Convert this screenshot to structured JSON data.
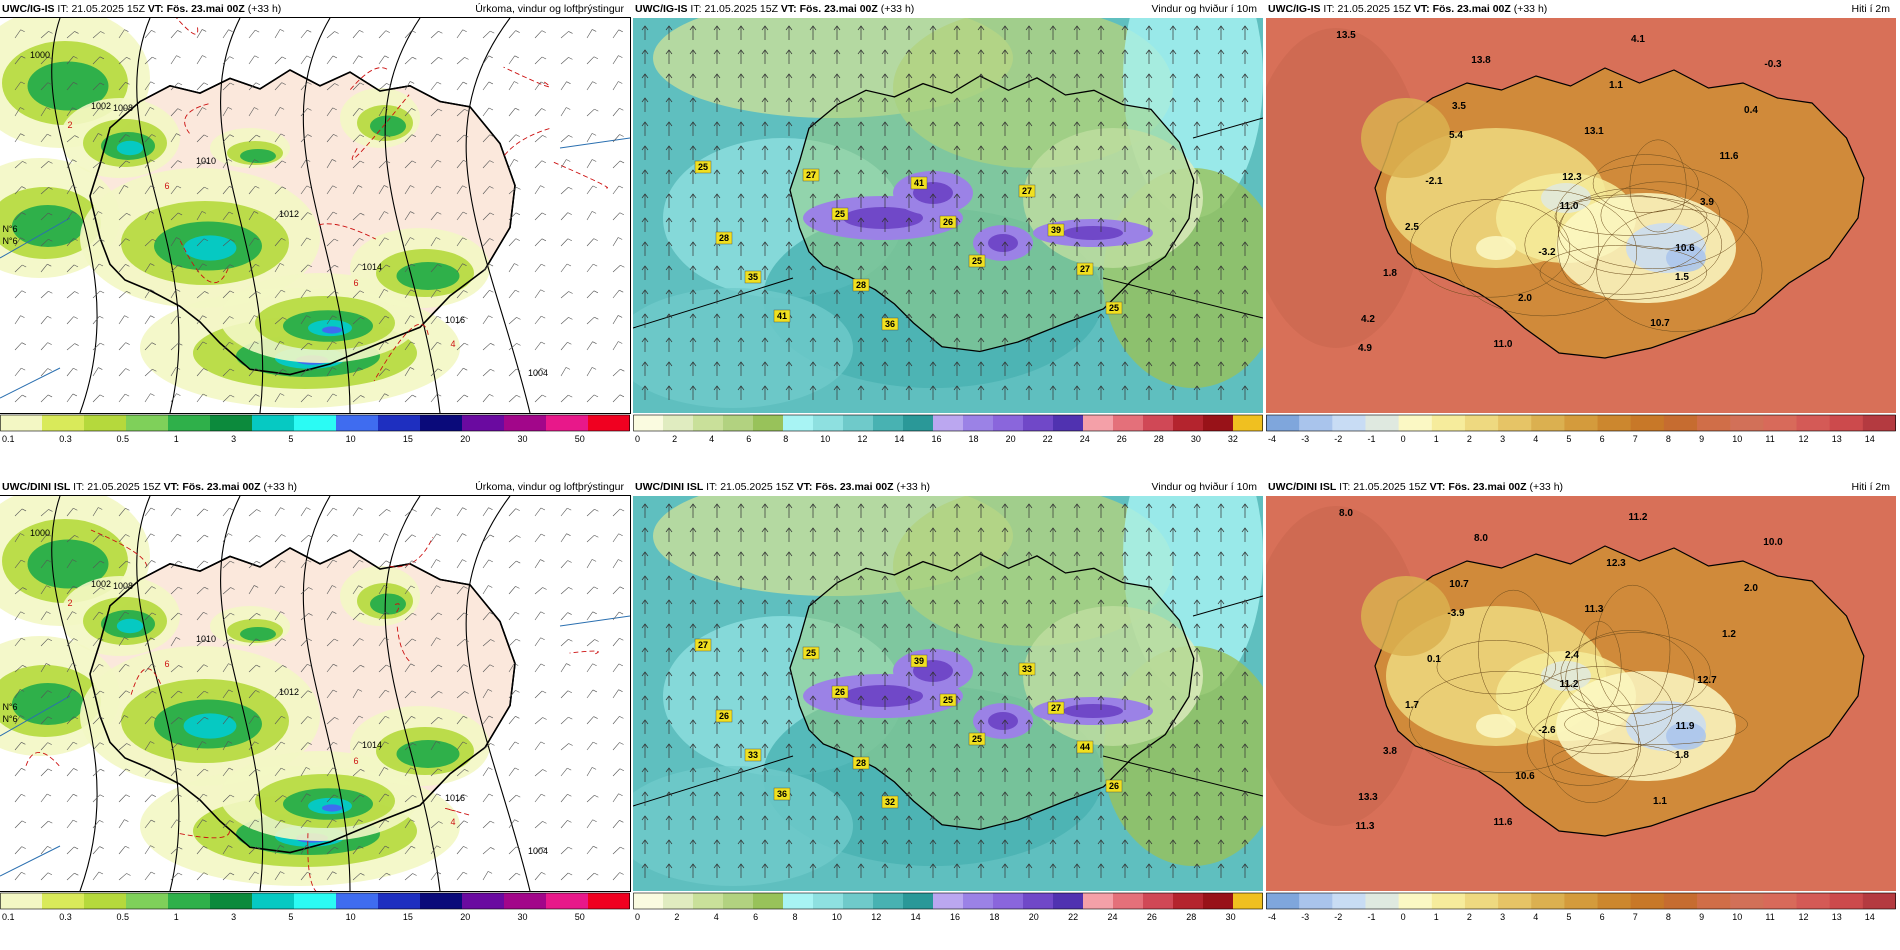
{
  "panels": [
    {
      "model": "UWC/IG-IS",
      "it_prefix": "IT:",
      "it": "21.05.2025 15Z",
      "vt_prefix": "VT:",
      "vt": "Fös. 23.mai 00Z",
      "lead": "(+33 h)",
      "title": "Úrkoma, vindur og loftþrýstingur",
      "kind": "precip",
      "framed": true,
      "labels": [
        {
          "t": "1000",
          "kind": "isobar"
        },
        {
          "t": "1008",
          "kind": "isobar"
        },
        {
          "t": "1010",
          "kind": "isobar"
        },
        {
          "t": "1012",
          "kind": "isobar"
        },
        {
          "t": "1014",
          "kind": "isobar"
        },
        {
          "t": "1016",
          "kind": "isobar"
        },
        {
          "t": "1004",
          "kind": "isobar"
        },
        {
          "t": "1002",
          "kind": "isobar"
        },
        {
          "t": "6",
          "kind": "red"
        },
        {
          "t": "4",
          "kind": "red"
        },
        {
          "t": "2",
          "kind": "red"
        },
        {
          "t": "6",
          "kind": "red"
        },
        {
          "t": "N°6",
          "kind": "lat"
        },
        {
          "t": "N°6",
          "kind": "lat"
        }
      ]
    },
    {
      "model": "UWC/IG-IS",
      "it_prefix": "IT:",
      "it": "21.05.2025 15Z",
      "vt_prefix": "VT:",
      "vt": "Fös. 23.mai 00Z",
      "lead": "(+33 h)",
      "title": "Vindur og hviður í 10m",
      "kind": "wind",
      "framed": false,
      "labels": [
        {
          "t": "25"
        },
        {
          "t": "25"
        },
        {
          "t": "25"
        },
        {
          "t": "25"
        },
        {
          "t": "27"
        },
        {
          "t": "26"
        },
        {
          "t": "27"
        },
        {
          "t": "41"
        },
        {
          "t": "41"
        },
        {
          "t": "39"
        },
        {
          "t": "35"
        },
        {
          "t": "36"
        },
        {
          "t": "27"
        },
        {
          "t": "28"
        },
        {
          "t": "28"
        }
      ]
    },
    {
      "model": "UWC/IG-IS",
      "it_prefix": "IT:",
      "it": "21.05.2025 15Z",
      "vt_prefix": "VT:",
      "vt": "Fös. 23.mai 00Z",
      "lead": "(+33 h)",
      "title": "Hiti í 2m",
      "kind": "temp",
      "framed": false,
      "labels": [
        {
          "t": "13.5"
        },
        {
          "t": "3.5"
        },
        {
          "t": "12.3"
        },
        {
          "t": "10.6"
        },
        {
          "t": "4.2"
        },
        {
          "t": "13.8"
        },
        {
          "t": "13.1"
        },
        {
          "t": "3.9"
        },
        {
          "t": "1.8"
        },
        {
          "t": "11.0"
        },
        {
          "t": "1.1"
        },
        {
          "t": "11.6"
        },
        {
          "t": "2.5"
        },
        {
          "t": "2.0"
        },
        {
          "t": "4.1"
        },
        {
          "t": "0.4"
        },
        {
          "t": "-2.1"
        },
        {
          "t": "-3.2"
        },
        {
          "t": "10.7"
        },
        {
          "t": "-0.3"
        },
        {
          "t": "5.4"
        },
        {
          "t": "11.0"
        },
        {
          "t": "1.5"
        },
        {
          "t": "4.9"
        }
      ]
    },
    {
      "model": "UWC/DINI ISL",
      "it_prefix": "IT:",
      "it": "21.05.2025 15Z",
      "vt_prefix": "VT:",
      "vt": "Fös. 23.mai 00Z",
      "lead": "(+33 h)",
      "title": "Úrkoma, vindur og loftþrýstingur",
      "kind": "precip",
      "framed": true,
      "labels": [
        {
          "t": "1000",
          "kind": "isobar"
        },
        {
          "t": "1008",
          "kind": "isobar"
        },
        {
          "t": "1010",
          "kind": "isobar"
        },
        {
          "t": "1012",
          "kind": "isobar"
        },
        {
          "t": "1014",
          "kind": "isobar"
        },
        {
          "t": "1016",
          "kind": "isobar"
        },
        {
          "t": "1004",
          "kind": "isobar"
        },
        {
          "t": "1002",
          "kind": "isobar"
        },
        {
          "t": "6",
          "kind": "red"
        },
        {
          "t": "4",
          "kind": "red"
        },
        {
          "t": "2",
          "kind": "red"
        },
        {
          "t": "6",
          "kind": "red"
        },
        {
          "t": "N°6",
          "kind": "lat"
        },
        {
          "t": "N°6",
          "kind": "lat"
        }
      ]
    },
    {
      "model": "UWC/DINI ISL",
      "it_prefix": "IT:",
      "it": "21.05.2025 15Z",
      "vt_prefix": "VT:",
      "vt": "Fös. 23.mai 00Z",
      "lead": "(+33 h)",
      "title": "Vindur og hviður í 10m",
      "kind": "wind",
      "framed": false,
      "labels": [
        {
          "t": "27"
        },
        {
          "t": "26"
        },
        {
          "t": "25"
        },
        {
          "t": "26"
        },
        {
          "t": "25"
        },
        {
          "t": "25"
        },
        {
          "t": "44"
        },
        {
          "t": "36"
        },
        {
          "t": "39"
        },
        {
          "t": "27"
        },
        {
          "t": "33"
        },
        {
          "t": "32"
        },
        {
          "t": "33"
        },
        {
          "t": "26"
        },
        {
          "t": "28"
        }
      ]
    },
    {
      "model": "UWC/DINI ISL",
      "it_prefix": "IT:",
      "it": "21.05.2025 15Z",
      "vt_prefix": "VT:",
      "vt": "Fös. 23.mai 00Z",
      "lead": "(+33 h)",
      "title": "Hiti í 2m",
      "kind": "temp",
      "framed": false,
      "labels": [
        {
          "t": "8.0"
        },
        {
          "t": "10.7"
        },
        {
          "t": "2.4"
        },
        {
          "t": "11.9"
        },
        {
          "t": "13.3"
        },
        {
          "t": "8.0"
        },
        {
          "t": "11.3"
        },
        {
          "t": "12.7"
        },
        {
          "t": "3.8"
        },
        {
          "t": "11.6"
        },
        {
          "t": "12.3"
        },
        {
          "t": "1.2"
        },
        {
          "t": "1.7"
        },
        {
          "t": "10.6"
        },
        {
          "t": "11.2"
        },
        {
          "t": "2.0"
        },
        {
          "t": "0.1"
        },
        {
          "t": "-2.6"
        },
        {
          "t": "1.1"
        },
        {
          "t": "10.0"
        },
        {
          "t": "-3.9"
        },
        {
          "t": "11.2"
        },
        {
          "t": "1.8"
        },
        {
          "t": "11.3"
        }
      ]
    }
  ],
  "colorbars": {
    "precip": {
      "colors": [
        "#f3f7c4",
        "#d9ea5a",
        "#b5d93c",
        "#7fd05a",
        "#2fb04a",
        "#0c8a3c",
        "#06c9c2",
        "#2bfbf4",
        "#3f6cf0",
        "#1e2fc0",
        "#0a0a7a",
        "#6a0aa0",
        "#a2068a",
        "#e8188a",
        "#f00020"
      ],
      "ticks": [
        "0.1",
        "0.3",
        "0.5",
        "1",
        "3",
        "5",
        "10",
        "15",
        "20",
        "30",
        "50"
      ]
    },
    "wind": {
      "colors": [
        "#fafbe0",
        "#e0ecc0",
        "#c9e09a",
        "#b2d280",
        "#98c25a",
        "#a8f4f4",
        "#8ee0e0",
        "#6fcaca",
        "#48b2b2",
        "#2a9898",
        "#bba7f0",
        "#9b82e6",
        "#8a66dc",
        "#7048c8",
        "#5032b0",
        "#f4a0a8",
        "#e4707a",
        "#d04856",
        "#b4242e",
        "#981218",
        "#f0c020"
      ],
      "ticks_top": [
        "0",
        "2",
        "4",
        "6",
        "8",
        "10",
        "12",
        "14",
        "16",
        "18",
        "20",
        "22",
        "24",
        "26",
        "28",
        "30",
        "32"
      ],
      "ticks_bottom": [
        "0",
        "2",
        "4",
        "6",
        "8",
        "10",
        "12",
        "14",
        "16",
        "18",
        "20",
        "22",
        "24",
        "26",
        "28",
        "30"
      ]
    },
    "temp": {
      "colors": [
        "#7fa6dc",
        "#a9c4ec",
        "#c8dcf4",
        "#dfe9e0",
        "#fbf8c4",
        "#f6ec9c",
        "#eed980",
        "#e6c466",
        "#dbb050",
        "#d49b3c",
        "#cc872e",
        "#c87828",
        "#c66c30",
        "#d06e48",
        "#d27058",
        "#d86a5a",
        "#d45a56",
        "#cc4a4c",
        "#b43a40"
      ],
      "ticks": [
        "-4",
        "-3",
        "-2",
        "-1",
        "0",
        "1",
        "2",
        "3",
        "4",
        "5",
        "6",
        "7",
        "8",
        "9",
        "10",
        "11",
        "12",
        "13",
        "14"
      ]
    }
  }
}
